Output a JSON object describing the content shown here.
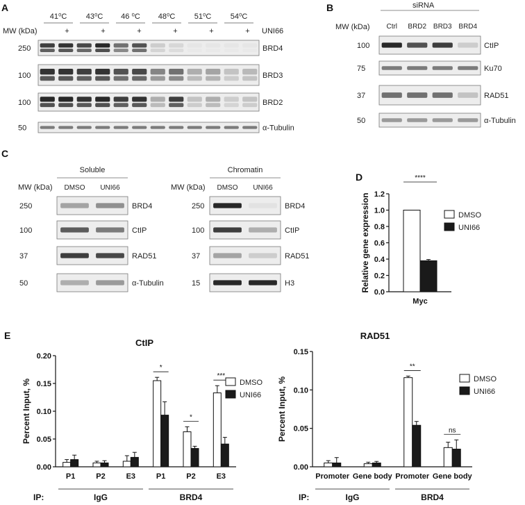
{
  "panels": {
    "A": {
      "letter": "A",
      "mw_header": "MW (kDa)",
      "temperatures": [
        "41⁰C",
        "43⁰C",
        "46 ⁰C",
        "48⁰C",
        "51⁰C",
        "54⁰C"
      ],
      "plus": "+",
      "treatment_label": "UNI66",
      "rows": [
        {
          "mw": "250",
          "protein": "BRD4"
        },
        {
          "mw": "100",
          "protein": "BRD3"
        },
        {
          "mw": "100",
          "protein": "BRD2"
        },
        {
          "mw": "50",
          "protein": "α-Tubulin"
        }
      ]
    },
    "B": {
      "letter": "B",
      "group_label": "siRNA",
      "mw_header": "MW (kDa)",
      "lanes": [
        "Ctrl",
        "BRD2",
        "BRD3",
        "BRD4"
      ],
      "rows": [
        {
          "mw": "100",
          "protein": "CtIP"
        },
        {
          "mw": "75",
          "protein": "Ku70"
        },
        {
          "mw": "37",
          "protein": "RAD51"
        },
        {
          "mw": "50",
          "protein": "α-Tubulin"
        }
      ]
    },
    "C": {
      "letter": "C",
      "left": {
        "title": "Soluble",
        "mw_header": "MW (kDa)",
        "lanes": [
          "DMSO",
          "UNI66"
        ],
        "rows": [
          {
            "mw": "250",
            "protein": "BRD4"
          },
          {
            "mw": "100",
            "protein": "CtIP"
          },
          {
            "mw": "37",
            "protein": "RAD51"
          },
          {
            "mw": "50",
            "protein": "α-Tubulin"
          }
        ]
      },
      "right": {
        "title": "Chromatin",
        "mw_header": "MW (kDa)",
        "lanes": [
          "DMSO",
          "UNI66"
        ],
        "rows": [
          {
            "mw": "250",
            "protein": "BRD4"
          },
          {
            "mw": "100",
            "protein": "CtIP"
          },
          {
            "mw": "37",
            "protein": "RAD51"
          },
          {
            "mw": "15",
            "protein": "H3"
          }
        ]
      }
    },
    "D": {
      "letter": "D"
    },
    "E": {
      "letter": "E",
      "ip_label": "IP:"
    }
  },
  "chart_data": [
    {
      "id": "D",
      "type": "bar",
      "title": "",
      "xlabel": "",
      "ylabel": "Relative gene expression",
      "categories": [
        "Myc"
      ],
      "series": [
        {
          "name": "DMSO",
          "values": [
            1.0
          ],
          "errors": [
            0.0
          ],
          "color": "#ffffff"
        },
        {
          "name": "UNI66",
          "values": [
            0.38
          ],
          "errors": [
            0.015
          ],
          "color": "#1a1a1a"
        }
      ],
      "ylim": [
        0,
        1.2
      ],
      "yticks": [
        "0.0",
        "0.2",
        "0.4",
        "0.6",
        "0.8",
        "1.0",
        "1.2"
      ],
      "significance": [
        {
          "category": 0,
          "label": "****"
        }
      ],
      "legend_position": "right"
    },
    {
      "id": "E-CtIP",
      "type": "bar",
      "title": "CtIP",
      "xlabel": "",
      "ylabel": "Percent Input, %",
      "categories": [
        "P1",
        "P2",
        "E3",
        "P1",
        "P2",
        "E3"
      ],
      "groups": [
        {
          "label": "IgG",
          "from": 0,
          "to": 2
        },
        {
          "label": "BRD4",
          "from": 3,
          "to": 5
        }
      ],
      "series": [
        {
          "name": "DMSO",
          "values": [
            0.008,
            0.007,
            0.01,
            0.155,
            0.063,
            0.133
          ],
          "errors": [
            0.005,
            0.003,
            0.01,
            0.006,
            0.009,
            0.013
          ],
          "color": "#ffffff"
        },
        {
          "name": "UNI66",
          "values": [
            0.013,
            0.007,
            0.017,
            0.093,
            0.033,
            0.041
          ],
          "errors": [
            0.008,
            0.004,
            0.009,
            0.024,
            0.004,
            0.012
          ],
          "color": "#1a1a1a"
        }
      ],
      "ylim": [
        0,
        0.2
      ],
      "yticks": [
        "0.00",
        "0.05",
        "0.10",
        "0.15",
        "0.20"
      ],
      "significance": [
        {
          "category": 3,
          "label": "*"
        },
        {
          "category": 4,
          "label": "*"
        },
        {
          "category": 5,
          "label": "***"
        }
      ],
      "legend_position": "top-right"
    },
    {
      "id": "E-RAD51",
      "type": "bar",
      "title": "RAD51",
      "xlabel": "",
      "ylabel": "Percent Input, %",
      "categories": [
        "Promoter",
        "Gene body",
        "Promoter",
        "Gene body"
      ],
      "groups": [
        {
          "label": "IgG",
          "from": 0,
          "to": 1
        },
        {
          "label": "BRD4",
          "from": 2,
          "to": 3
        }
      ],
      "series": [
        {
          "name": "DMSO",
          "values": [
            0.005,
            0.004,
            0.116,
            0.025
          ],
          "errors": [
            0.003,
            0.002,
            0.002,
            0.007
          ],
          "color": "#ffffff"
        },
        {
          "name": "UNI66",
          "values": [
            0.005,
            0.005,
            0.054,
            0.023
          ],
          "errors": [
            0.007,
            0.002,
            0.005,
            0.012
          ],
          "color": "#1a1a1a"
        }
      ],
      "ylim": [
        0,
        0.15
      ],
      "yticks": [
        "0.00",
        "0.05",
        "0.10",
        "0.15"
      ],
      "significance": [
        {
          "category": 2,
          "label": "**"
        },
        {
          "category": 3,
          "label": "ns"
        }
      ],
      "legend_position": "top-right"
    }
  ]
}
